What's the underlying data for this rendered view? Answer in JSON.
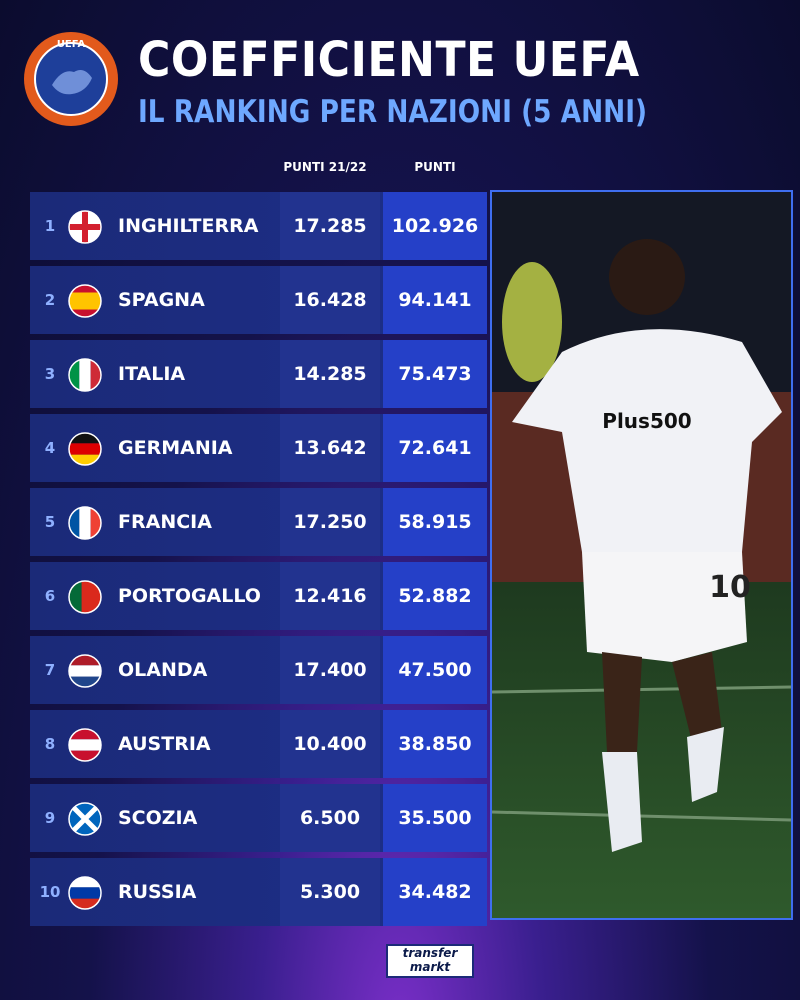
{
  "header": {
    "logo_text": "UEFA",
    "title": "COEFFICIENTE UEFA",
    "subtitle": "IL RANKING PER NAZIONI (5 ANNI)"
  },
  "table": {
    "columns": [
      "PUNTI 21/22",
      "PUNTI"
    ],
    "rows": [
      {
        "rank": 1,
        "country": "INGHILTERRA",
        "points_21_22": "17.285",
        "points": "102.926"
      },
      {
        "rank": 2,
        "country": "SPAGNA",
        "points_21_22": "16.428",
        "points": "94.141"
      },
      {
        "rank": 3,
        "country": "ITALIA",
        "points_21_22": "14.285",
        "points": "75.473"
      },
      {
        "rank": 4,
        "country": "GERMANIA",
        "points_21_22": "13.642",
        "points": "72.641"
      },
      {
        "rank": 5,
        "country": "FRANCIA",
        "points_21_22": "17.250",
        "points": "58.915"
      },
      {
        "rank": 6,
        "country": "PORTOGALLO",
        "points_21_22": "12.416",
        "points": "52.882"
      },
      {
        "rank": 7,
        "country": "OLANDA",
        "points_21_22": "17.400",
        "points": "47.500"
      },
      {
        "rank": 8,
        "country": "AUSTRIA",
        "points_21_22": "10.400",
        "points": "38.850"
      },
      {
        "rank": 9,
        "country": "SCOZIA",
        "points_21_22": "6.500",
        "points": "35.500"
      },
      {
        "rank": 10,
        "country": "RUSSIA",
        "points_21_22": "5.300",
        "points": "34.482"
      }
    ]
  },
  "photo": {
    "shirt_text": "Plus500",
    "shirt_number": "10"
  },
  "footer": {
    "brand_top": "transfer",
    "brand_bottom": "markt"
  }
}
